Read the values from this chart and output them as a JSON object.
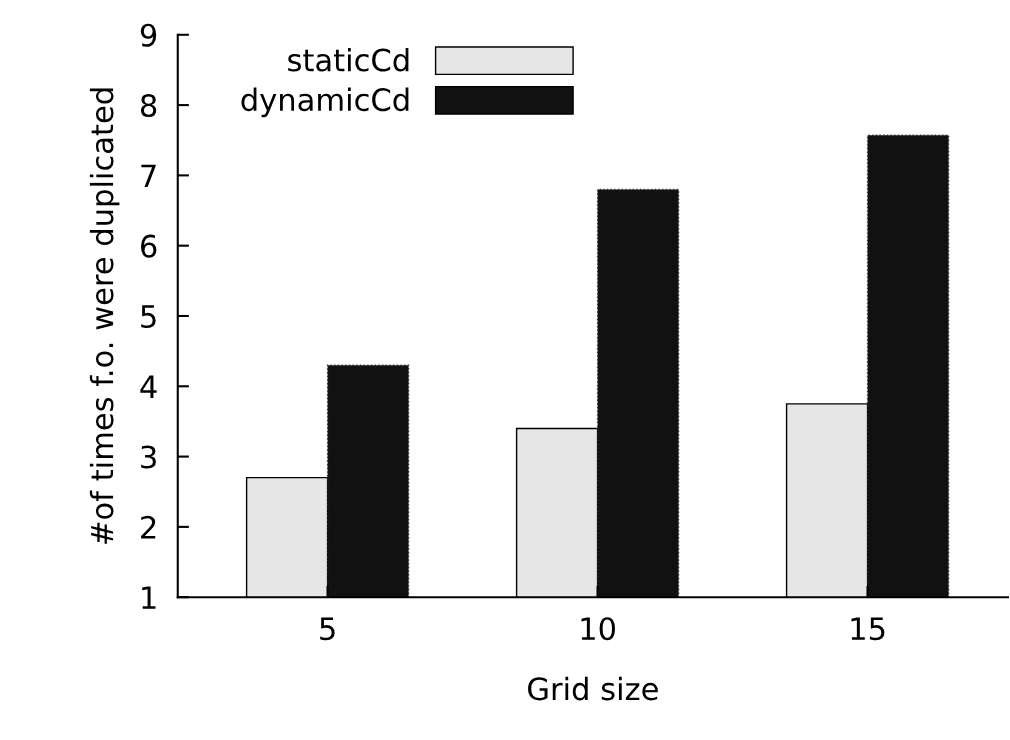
{
  "chart_data": {
    "type": "bar",
    "xlabel": "Grid size",
    "ylabel": "#of times f.o. were duplicated",
    "categories": [
      "5",
      "10",
      "15"
    ],
    "series": [
      {
        "name": "staticCd",
        "color": "#e6e6e6",
        "values": [
          2.7,
          3.4,
          3.75
        ]
      },
      {
        "name": "dynamicCd",
        "color": "#111111",
        "values": [
          4.3,
          6.8,
          7.57
        ]
      }
    ],
    "ylim": [
      1,
      9
    ],
    "yticks": [
      1,
      2,
      3,
      4,
      5,
      6,
      7,
      8,
      9
    ],
    "grid": false,
    "legend": "top left"
  }
}
